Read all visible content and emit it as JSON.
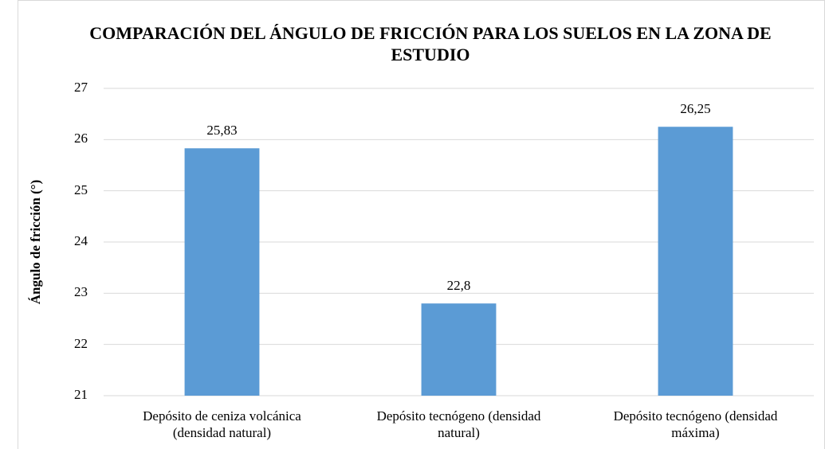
{
  "chart_data": {
    "type": "bar",
    "title": "COMPARACIÓN DEL ÁNGULO DE FRICCIÓN PARA LOS SUELOS EN LA ZONA DE ESTUDIO",
    "y_label": "Ángulo de fricción (°)",
    "categories": [
      "Depósito de ceniza volcánica (densidad natural)",
      "Depósito tecnógeno (densidad natural)",
      "Depósito tecnógeno (densidad máxima)"
    ],
    "values": [
      25.83,
      22.8,
      26.25
    ],
    "value_labels": [
      "25,83",
      "22,8",
      "26,25"
    ],
    "color": "#5b9bd5",
    "ylim": [
      21,
      27
    ],
    "yticks": [
      21,
      22,
      23,
      24,
      25,
      26,
      27
    ],
    "grid": true
  }
}
